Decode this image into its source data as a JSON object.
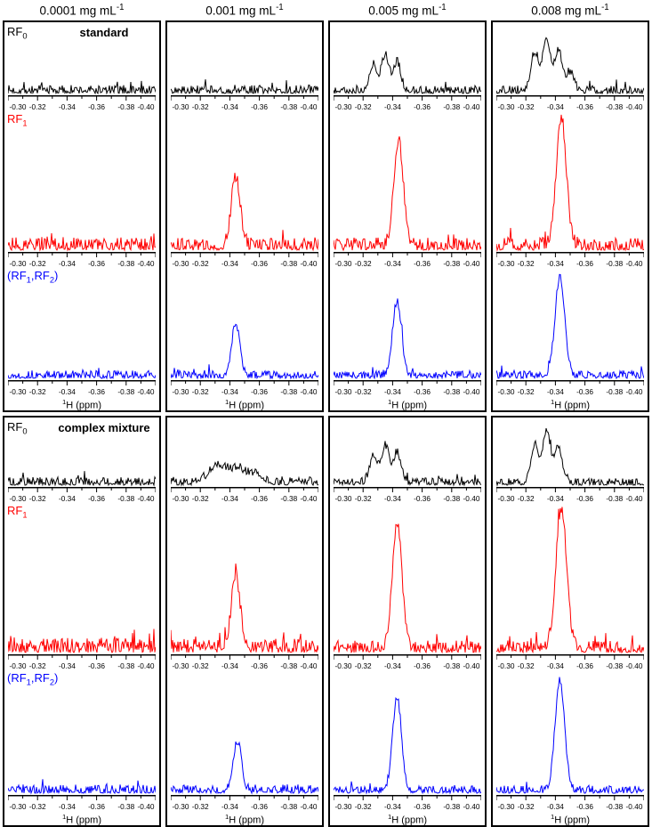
{
  "figure": {
    "column_headers": [
      {
        "segments": [
          {
            "t": "0.0001 mg mL"
          },
          {
            "sup": "-1"
          }
        ]
      },
      {
        "segments": [
          {
            "t": "0.001 mg mL"
          },
          {
            "sup": "-1"
          }
        ]
      },
      {
        "segments": [
          {
            "t": "0.005 mg mL"
          },
          {
            "sup": "-1"
          }
        ]
      },
      {
        "segments": [
          {
            "t": "0.008 mg mL"
          },
          {
            "sup": "-1"
          }
        ]
      }
    ],
    "row_labels": [
      {
        "name": "RF0",
        "color": "#000000",
        "segments": [
          {
            "t": "RF"
          },
          {
            "sub": "0"
          }
        ]
      },
      {
        "name": "RF1",
        "color": "#ff0000",
        "segments": [
          {
            "t": "RF"
          },
          {
            "sub": "1"
          }
        ]
      },
      {
        "name": "RF1RF2",
        "color": "#0000ff",
        "segments": [
          {
            "t": "(RF"
          },
          {
            "sub": "1"
          },
          {
            "t": ",RF"
          },
          {
            "sub": "2"
          },
          {
            "t": ")"
          }
        ]
      }
    ],
    "panel_titles": [
      "standard",
      "complex mixture"
    ],
    "xaxis": {
      "tick_labels": [
        "-0.30",
        "-0.32",
        "-0.34",
        "-0.36",
        "-0.38",
        "-0.40"
      ],
      "title_segments": [
        {
          "sup": "1"
        },
        {
          "t": "H (ppm)"
        }
      ]
    }
  },
  "chart_data": {
    "type": "line",
    "description": "1H NMR spectra at four concentrations for three RF pulse schemes (RF0 black, RF1 red, (RF1,RF2) blue) for a standard sample and a complex mixture. Peak grows at ~ -0.345 ppm with concentration.",
    "x_label": "1H (ppm)",
    "x_range_ppm": [
      -0.3,
      -0.4
    ],
    "x_tick_ppm": [
      -0.3,
      -0.32,
      -0.34,
      -0.36,
      -0.38,
      -0.4
    ],
    "concentrations_mg_per_mL": [
      0.0001,
      0.001,
      0.005,
      0.008
    ],
    "panels": [
      {
        "sample": "standard",
        "columns": [
          {
            "concentration": "0.0001",
            "spectra": [
              {
                "row": "RF0",
                "noise_rel": 0.12,
                "peaks": []
              },
              {
                "row": "RF1",
                "noise_rel": 0.1,
                "peaks": []
              },
              {
                "row": "(RF1,RF2)",
                "noise_rel": 0.07,
                "peaks": []
              }
            ]
          },
          {
            "concentration": "0.001",
            "spectra": [
              {
                "row": "RF0",
                "noise_rel": 0.12,
                "peaks": []
              },
              {
                "row": "RF1",
                "noise_rel": 0.09,
                "peaks": [
                  {
                    "ppm": -0.344,
                    "rel_height": 0.52,
                    "width_ppm": 0.003
                  }
                ]
              },
              {
                "row": "(RF1,RF2)",
                "noise_rel": 0.07,
                "peaks": [
                  {
                    "ppm": -0.344,
                    "rel_height": 0.5,
                    "width_ppm": 0.0028
                  }
                ]
              }
            ]
          },
          {
            "concentration": "0.005",
            "spectra": [
              {
                "row": "RF0",
                "noise_rel": 0.11,
                "peaks": [
                  {
                    "ppm": -0.327,
                    "rel_height": 0.42,
                    "width_ppm": 0.0025
                  },
                  {
                    "ppm": -0.335,
                    "rel_height": 0.58,
                    "width_ppm": 0.0025
                  },
                  {
                    "ppm": -0.343,
                    "rel_height": 0.46,
                    "width_ppm": 0.0025
                  }
                ]
              },
              {
                "row": "RF1",
                "noise_rel": 0.09,
                "peaks": [
                  {
                    "ppm": -0.344,
                    "rel_height": 0.8,
                    "width_ppm": 0.0032
                  }
                ]
              },
              {
                "row": "(RF1,RF2)",
                "noise_rel": 0.07,
                "peaks": [
                  {
                    "ppm": -0.343,
                    "rel_height": 0.72,
                    "width_ppm": 0.003
                  }
                ]
              }
            ]
          },
          {
            "concentration": "0.008",
            "spectra": [
              {
                "row": "RF0",
                "noise_rel": 0.11,
                "peaks": [
                  {
                    "ppm": -0.326,
                    "rel_height": 0.62,
                    "width_ppm": 0.0026
                  },
                  {
                    "ppm": -0.334,
                    "rel_height": 0.85,
                    "width_ppm": 0.0026
                  },
                  {
                    "ppm": -0.342,
                    "rel_height": 0.65,
                    "width_ppm": 0.0026
                  },
                  {
                    "ppm": -0.35,
                    "rel_height": 0.3,
                    "width_ppm": 0.0025
                  }
                ]
              },
              {
                "row": "RF1",
                "noise_rel": 0.09,
                "peaks": [
                  {
                    "ppm": -0.344,
                    "rel_height": 0.97,
                    "width_ppm": 0.0034
                  }
                ]
              },
              {
                "row": "(RF1,RF2)",
                "noise_rel": 0.07,
                "peaks": [
                  {
                    "ppm": -0.343,
                    "rel_height": 0.95,
                    "width_ppm": 0.0032
                  }
                ]
              }
            ]
          }
        ]
      },
      {
        "sample": "complex mixture",
        "columns": [
          {
            "concentration": "0.0001",
            "spectra": [
              {
                "row": "RF0",
                "noise_rel": 0.12,
                "peaks": []
              },
              {
                "row": "RF1",
                "noise_rel": 0.1,
                "peaks": []
              },
              {
                "row": "(RF1,RF2)",
                "noise_rel": 0.07,
                "peaks": []
              }
            ]
          },
          {
            "concentration": "0.001",
            "spectra": [
              {
                "row": "RF0",
                "noise_rel": 0.12,
                "peaks": [
                  {
                    "ppm": -0.332,
                    "rel_height": 0.3,
                    "width_ppm": 0.006
                  },
                  {
                    "ppm": -0.346,
                    "rel_height": 0.22,
                    "width_ppm": 0.005
                  },
                  {
                    "ppm": -0.358,
                    "rel_height": 0.15,
                    "width_ppm": 0.0045
                  }
                ]
              },
              {
                "row": "RF1",
                "noise_rel": 0.09,
                "peaks": [
                  {
                    "ppm": -0.344,
                    "rel_height": 0.5,
                    "width_ppm": 0.003
                  }
                ]
              },
              {
                "row": "(RF1,RF2)",
                "noise_rel": 0.07,
                "peaks": [
                  {
                    "ppm": -0.345,
                    "rel_height": 0.42,
                    "width_ppm": 0.0028
                  }
                ]
              }
            ]
          },
          {
            "concentration": "0.005",
            "spectra": [
              {
                "row": "RF0",
                "noise_rel": 0.11,
                "peaks": [
                  {
                    "ppm": -0.327,
                    "rel_height": 0.45,
                    "width_ppm": 0.0026
                  },
                  {
                    "ppm": -0.335,
                    "rel_height": 0.62,
                    "width_ppm": 0.0026
                  },
                  {
                    "ppm": -0.343,
                    "rel_height": 0.5,
                    "width_ppm": 0.0026
                  }
                ]
              },
              {
                "row": "RF1",
                "noise_rel": 0.08,
                "peaks": [
                  {
                    "ppm": -0.343,
                    "rel_height": 0.88,
                    "width_ppm": 0.0032
                  }
                ]
              },
              {
                "row": "(RF1,RF2)",
                "noise_rel": 0.06,
                "peaks": [
                  {
                    "ppm": -0.343,
                    "rel_height": 0.8,
                    "width_ppm": 0.003
                  }
                ]
              }
            ]
          },
          {
            "concentration": "0.008",
            "spectra": [
              {
                "row": "RF0",
                "noise_rel": 0.1,
                "peaks": [
                  {
                    "ppm": -0.326,
                    "rel_height": 0.65,
                    "width_ppm": 0.0026
                  },
                  {
                    "ppm": -0.334,
                    "rel_height": 0.88,
                    "width_ppm": 0.0026
                  },
                  {
                    "ppm": -0.342,
                    "rel_height": 0.62,
                    "width_ppm": 0.0026
                  }
                ]
              },
              {
                "row": "RF1",
                "noise_rel": 0.08,
                "peaks": [
                  {
                    "ppm": -0.344,
                    "rel_height": 0.98,
                    "width_ppm": 0.0036
                  }
                ]
              },
              {
                "row": "(RF1,RF2)",
                "noise_rel": 0.06,
                "peaks": [
                  {
                    "ppm": -0.343,
                    "rel_height": 0.95,
                    "width_ppm": 0.0032
                  }
                ]
              }
            ]
          }
        ]
      }
    ]
  }
}
